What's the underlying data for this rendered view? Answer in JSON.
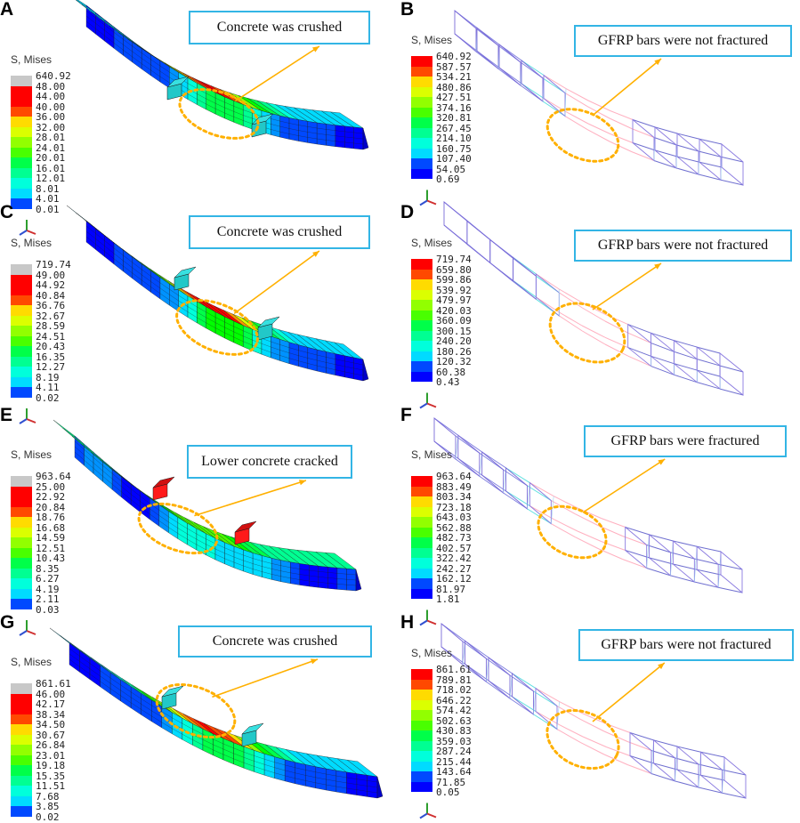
{
  "legend_title": "S, Mises",
  "colors": {
    "ramp": [
      "#0000ff",
      "#0049ff",
      "#0092ff",
      "#00dbff",
      "#00ffdb",
      "#00ff92",
      "#00ff49",
      "#00ff00",
      "#49ff00",
      "#92ff00",
      "#dbff00",
      "#ffdb00",
      "#ff9200",
      "#ff4900",
      "#ff0000"
    ],
    "over": "#c8c8c8",
    "callout_border": "#33b5e5",
    "arrow": "#ffb000",
    "ellipse": "#ffb000"
  },
  "panels": [
    {
      "letter": "A",
      "kind": "concrete",
      "callout": "Concrete was crushed",
      "legend": [
        "640.92",
        "48.00",
        "44.00",
        "40.00",
        "36.00",
        "32.00",
        "28.01",
        "24.01",
        "20.01",
        "16.01",
        "12.01",
        "8.01",
        "4.01",
        "0.01"
      ]
    },
    {
      "letter": "B",
      "kind": "rebar",
      "callout": "GFRP bars were not fractured",
      "legend": [
        "640.92",
        "587.57",
        "534.21",
        "480.86",
        "427.51",
        "374.16",
        "320.81",
        "267.45",
        "214.10",
        "160.75",
        "107.40",
        "54.05",
        "0.69"
      ]
    },
    {
      "letter": "C",
      "kind": "concrete",
      "callout": "Concrete was crushed",
      "legend": [
        "719.74",
        "49.00",
        "44.92",
        "40.84",
        "36.76",
        "32.67",
        "28.59",
        "24.51",
        "20.43",
        "16.35",
        "12.27",
        "8.19",
        "4.11",
        "0.02"
      ]
    },
    {
      "letter": "D",
      "kind": "rebar",
      "callout": "GFRP bars were not fractured",
      "legend": [
        "719.74",
        "659.80",
        "599.86",
        "539.92",
        "479.97",
        "420.03",
        "360.09",
        "300.15",
        "240.20",
        "180.26",
        "120.32",
        "60.38",
        "0.43"
      ]
    },
    {
      "letter": "E",
      "kind": "concrete",
      "callout": "Lower concrete cracked",
      "legend": [
        "963.64",
        "25.00",
        "22.92",
        "20.84",
        "18.76",
        "16.68",
        "14.59",
        "12.51",
        "10.43",
        "8.35",
        "6.27",
        "4.19",
        "2.11",
        "0.03"
      ]
    },
    {
      "letter": "F",
      "kind": "rebar",
      "callout": "GFRP bars were fractured",
      "legend": [
        "963.64",
        "883.49",
        "803.34",
        "723.18",
        "643.03",
        "562.88",
        "482.73",
        "402.57",
        "322.42",
        "242.27",
        "162.12",
        "81.97",
        "1.81"
      ]
    },
    {
      "letter": "G",
      "kind": "concrete",
      "callout": "Concrete was crushed",
      "legend": [
        "861.61",
        "46.00",
        "42.17",
        "38.34",
        "34.50",
        "30.67",
        "26.84",
        "23.01",
        "19.18",
        "15.35",
        "11.51",
        "7.68",
        "3.85",
        "0.02"
      ]
    },
    {
      "letter": "H",
      "kind": "rebar",
      "callout": "GFRP bars were not fractured",
      "legend": [
        "861.61",
        "789.81",
        "718.02",
        "646.22",
        "574.42",
        "502.63",
        "430.83",
        "359.03",
        "287.24",
        "215.44",
        "143.64",
        "71.85",
        "0.05"
      ]
    }
  ]
}
